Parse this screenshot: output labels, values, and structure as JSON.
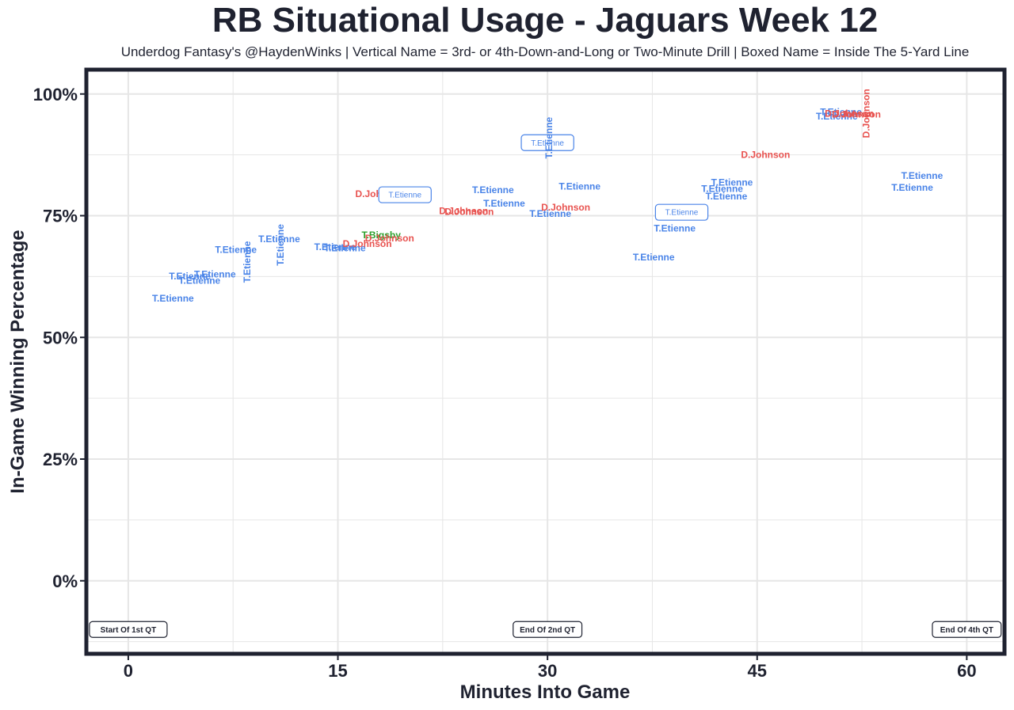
{
  "chart_data": {
    "type": "scatter",
    "title": "RB Situational Usage - Jaguars Week 12",
    "subtitle": "Underdog Fantasy's @HaydenWinks | Vertical Name = 3rd- or 4th-Down-and-Long or Two-Minute Drill | Boxed Name = Inside The 5-Yard Line",
    "xlabel": "Minutes Into Game",
    "ylabel": "In-Game Winning Percentage",
    "xlim": [
      -3,
      62.7
    ],
    "ylim": [
      -15,
      105
    ],
    "x_ticks": [
      0,
      15,
      30,
      45,
      60
    ],
    "x_tick_labels": [
      "0",
      "15",
      "30",
      "45",
      "60"
    ],
    "y_ticks": [
      0,
      25,
      50,
      75,
      100
    ],
    "y_tick_labels": [
      "0%",
      "25%",
      "50%",
      "75%",
      "100%"
    ],
    "grid": true,
    "colors": {
      "T.Etienne": "#4a84e8",
      "D.Johnson": "#e8524f",
      "T.Bigsby": "#2ca02c",
      "frame": "#1f2230",
      "grid": "#e6e6e6"
    },
    "quarter_markers": [
      {
        "x": 0,
        "label": "Start Of 1st QT"
      },
      {
        "x": 30,
        "label": "End Of 2nd QT"
      },
      {
        "x": 60,
        "label": "End Of 4th QT"
      }
    ],
    "points": [
      {
        "x": 3.2,
        "y": 58,
        "player": "T.Etienne",
        "style": "normal"
      },
      {
        "x": 4.4,
        "y": 62.6,
        "player": "T.Etienne",
        "style": "normal"
      },
      {
        "x": 5.1,
        "y": 61.7,
        "player": "T.Etienne",
        "style": "normal"
      },
      {
        "x": 6.2,
        "y": 63.0,
        "player": "T.Etienne",
        "style": "normal"
      },
      {
        "x": 7.7,
        "y": 68.0,
        "player": "T.Etienne",
        "style": "normal"
      },
      {
        "x": 8.5,
        "y": 65.5,
        "player": "T.Etienne",
        "style": "vertical"
      },
      {
        "x": 10.8,
        "y": 70.2,
        "player": "T.Etienne",
        "style": "normal"
      },
      {
        "x": 10.9,
        "y": 69.0,
        "player": "T.Etienne",
        "style": "vertical"
      },
      {
        "x": 14.8,
        "y": 68.6,
        "player": "T.Etienne",
        "style": "normal"
      },
      {
        "x": 15.5,
        "y": 68.3,
        "player": "T.Etienne",
        "style": "normal"
      },
      {
        "x": 17.1,
        "y": 69.2,
        "player": "D.Johnson",
        "style": "normal"
      },
      {
        "x": 18.1,
        "y": 71.0,
        "player": "T.Bigsby",
        "style": "normal"
      },
      {
        "x": 18.7,
        "y": 70.4,
        "player": "D.Johnson",
        "style": "normal"
      },
      {
        "x": 18.0,
        "y": 79.5,
        "player": "D.Johnson",
        "style": "normal"
      },
      {
        "x": 19.8,
        "y": 79.3,
        "player": "T.Etienne",
        "style": "boxed"
      },
      {
        "x": 24.0,
        "y": 76.0,
        "player": "D.Johnson",
        "style": "normal"
      },
      {
        "x": 24.4,
        "y": 75.8,
        "player": "D.Johnson",
        "style": "normal"
      },
      {
        "x": 26.1,
        "y": 80.3,
        "player": "T.Etienne",
        "style": "normal"
      },
      {
        "x": 26.9,
        "y": 77.5,
        "player": "T.Etienne",
        "style": "normal"
      },
      {
        "x": 30.0,
        "y": 90.0,
        "player": "T.Etienne",
        "style": "boxed"
      },
      {
        "x": 30.1,
        "y": 91.0,
        "player": "T.Etienne",
        "style": "vertical"
      },
      {
        "x": 30.2,
        "y": 75.4,
        "player": "T.Etienne",
        "style": "normal"
      },
      {
        "x": 31.3,
        "y": 76.7,
        "player": "D.Johnson",
        "style": "normal"
      },
      {
        "x": 32.3,
        "y": 81.0,
        "player": "T.Etienne",
        "style": "normal"
      },
      {
        "x": 37.6,
        "y": 66.5,
        "player": "T.Etienne",
        "style": "normal"
      },
      {
        "x": 39.1,
        "y": 72.4,
        "player": "T.Etienne",
        "style": "normal"
      },
      {
        "x": 39.6,
        "y": 75.7,
        "player": "T.Etienne",
        "style": "boxed"
      },
      {
        "x": 42.5,
        "y": 80.5,
        "player": "T.Etienne",
        "style": "normal"
      },
      {
        "x": 42.8,
        "y": 79.0,
        "player": "T.Etienne",
        "style": "normal"
      },
      {
        "x": 43.2,
        "y": 81.8,
        "player": "T.Etienne",
        "style": "normal"
      },
      {
        "x": 45.6,
        "y": 87.5,
        "player": "D.Johnson",
        "style": "normal"
      },
      {
        "x": 50.7,
        "y": 95.4,
        "player": "T.Etienne",
        "style": "normal"
      },
      {
        "x": 51.0,
        "y": 96.3,
        "player": "T.Etienne",
        "style": "normal"
      },
      {
        "x": 51.6,
        "y": 96.0,
        "player": "D.Johnson",
        "style": "normal"
      },
      {
        "x": 52.1,
        "y": 95.8,
        "player": "D.Johnson",
        "style": "normal"
      },
      {
        "x": 52.8,
        "y": 96.0,
        "player": "D.Johnson",
        "style": "vertical"
      },
      {
        "x": 56.1,
        "y": 80.8,
        "player": "T.Etienne",
        "style": "normal"
      },
      {
        "x": 56.8,
        "y": 83.2,
        "player": "T.Etienne",
        "style": "normal"
      }
    ]
  }
}
